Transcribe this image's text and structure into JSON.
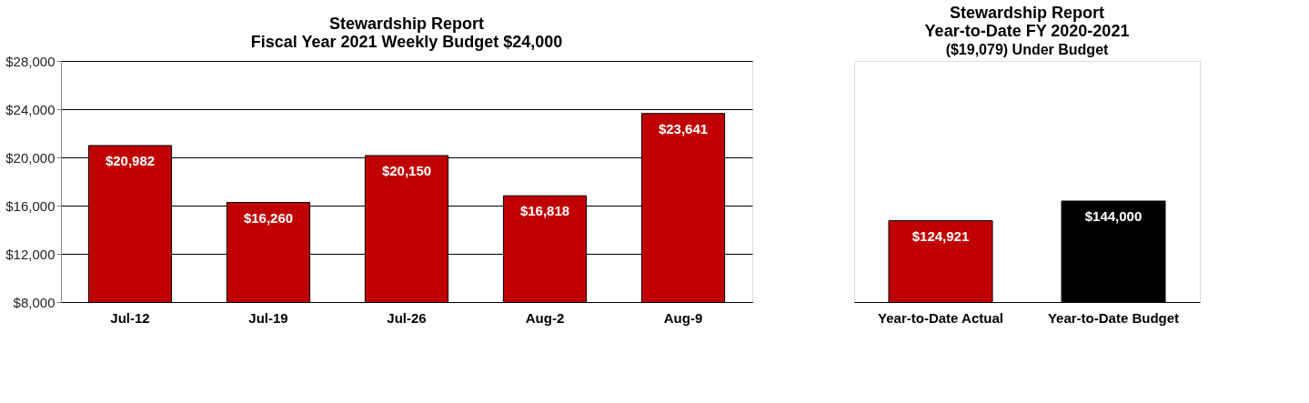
{
  "chart_data": [
    {
      "type": "bar",
      "title": "Stewardship Report\nFiscal Year 2021 Weekly Budget $24,000",
      "categories": [
        "Jul-12",
        "Jul-19",
        "Jul-26",
        "Aug-2",
        "Aug-9"
      ],
      "values": [
        20982,
        16260,
        20150,
        16818,
        23641
      ],
      "value_labels": [
        "$20,982",
        "$16,260",
        "$20,150",
        "$16,818",
        "$23,641"
      ],
      "colors": [
        "#c00000",
        "#c00000",
        "#c00000",
        "#c00000",
        "#c00000"
      ],
      "ylim": [
        8000,
        28000
      ],
      "yticks": [
        {
          "value": 8000,
          "label": "$8,000"
        },
        {
          "value": 12000,
          "label": "$12,000"
        },
        {
          "value": 16000,
          "label": "$16,000"
        },
        {
          "value": 20000,
          "label": "$20,000"
        },
        {
          "value": 24000,
          "label": "$24,000"
        },
        {
          "value": 28000,
          "label": "$28,000"
        }
      ],
      "grid": "y"
    },
    {
      "type": "bar",
      "title": "Stewardship Report\nYear-to-Date  FY 2020-2021",
      "subtitle": "($19,079) Under Budget",
      "categories": [
        "Year-to-Date Actual",
        "Year-to-Date Budget"
      ],
      "values": [
        124921,
        144000
      ],
      "value_labels": [
        "$124,921",
        "$144,000"
      ],
      "colors": [
        "#c00000",
        "#000000"
      ],
      "ylim": [
        46000,
        280000
      ],
      "tick_labels": "x"
    }
  ]
}
